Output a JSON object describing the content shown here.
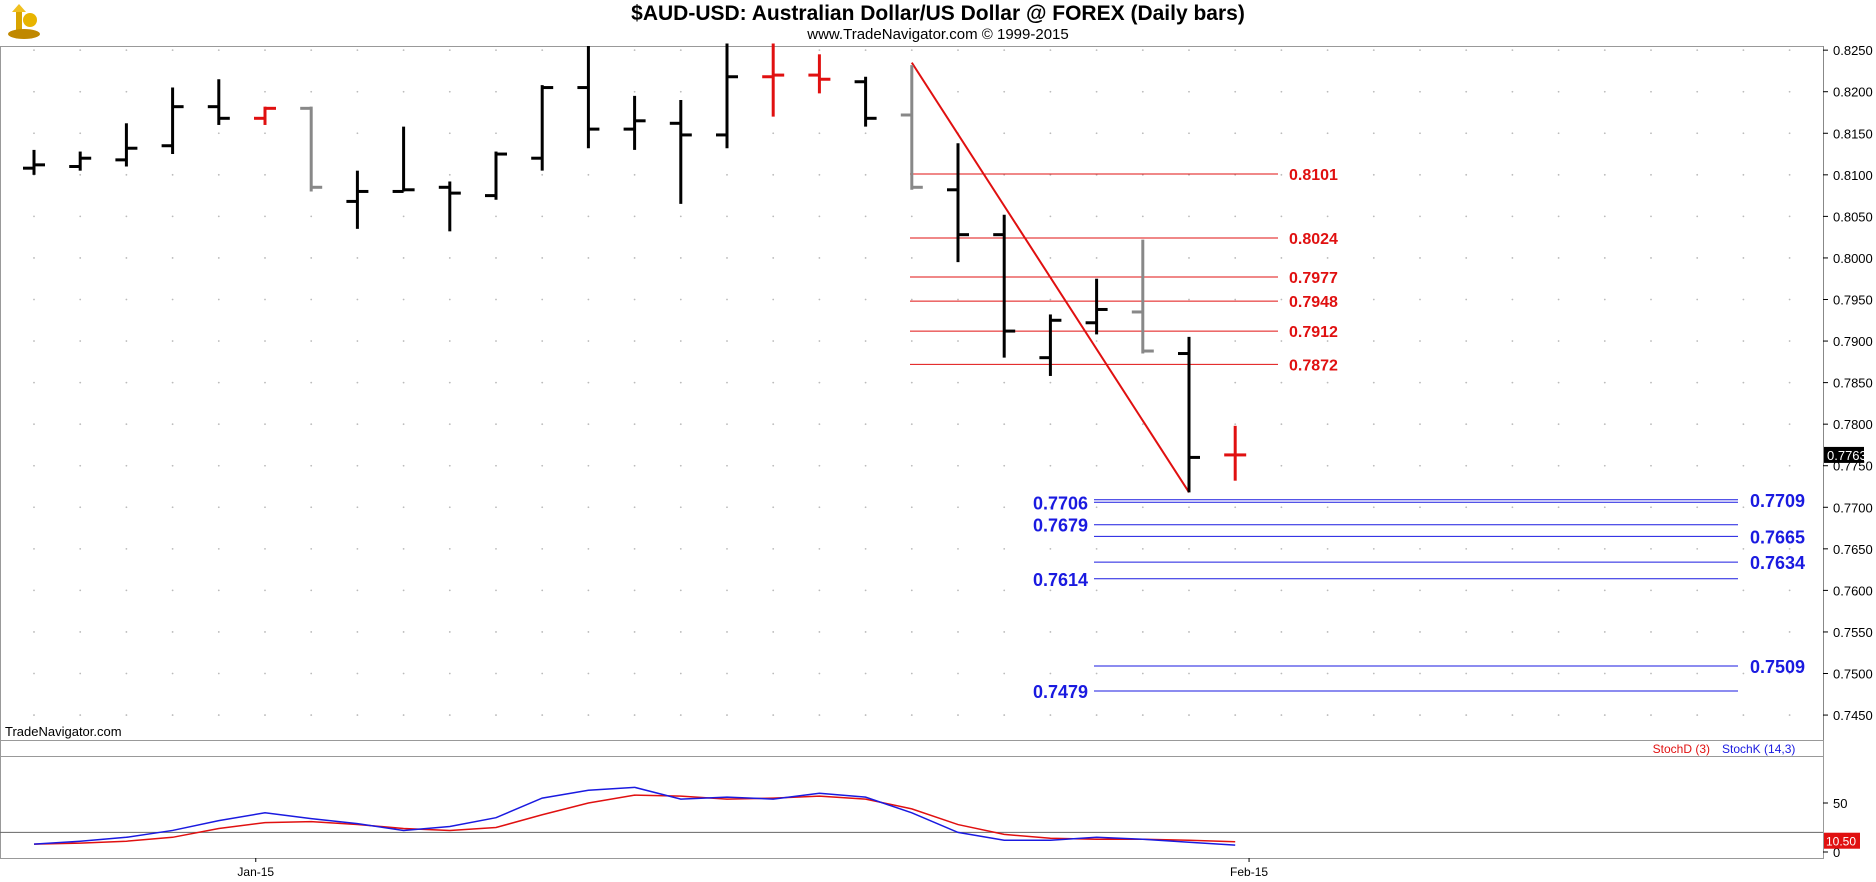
{
  "header": {
    "title": "$AUD-USD:  Australian Dollar/US Dollar @ FOREX  (Daily bars)",
    "subtitle": "www.TradeNavigator.com © 1999-2015",
    "watermark": "TradeNavigator.com"
  },
  "colors": {
    "up_bar": "#000000",
    "down_bar": "#000000",
    "neutral_bar": "#888888",
    "red": "#e01010",
    "blue": "#1a1ae0",
    "grid": "#bbbbbb"
  },
  "chart_data": [
    {
      "type": "ohlc",
      "name": "price",
      "y_ticks": [
        "0.8250",
        "0.8200",
        "0.8150",
        "0.8100",
        "0.8050",
        "0.8000",
        "0.7950",
        "0.7900",
        "0.7850",
        "0.7800",
        "0.7750",
        "0.7700",
        "0.7650",
        "0.7600",
        "0.7550",
        "0.7500",
        "0.7450"
      ],
      "ylim": [
        0.742,
        0.8255
      ],
      "x_ticks": [
        {
          "label": "Jan-15",
          "index": 4.8
        },
        {
          "label": "Feb-15",
          "index": 26.3
        }
      ],
      "last_price_label": "0.7763",
      "bars": [
        {
          "o": 0.8108,
          "h": 0.813,
          "l": 0.81,
          "c": 0.8112,
          "color": "black"
        },
        {
          "o": 0.811,
          "h": 0.8128,
          "l": 0.8105,
          "c": 0.812,
          "color": "black"
        },
        {
          "o": 0.8118,
          "h": 0.8162,
          "l": 0.811,
          "c": 0.8132,
          "color": "black"
        },
        {
          "o": 0.8135,
          "h": 0.8205,
          "l": 0.8125,
          "c": 0.8182,
          "color": "black"
        },
        {
          "o": 0.8182,
          "h": 0.8215,
          "l": 0.816,
          "c": 0.8168,
          "color": "black"
        },
        {
          "o": 0.8168,
          "h": 0.8182,
          "l": 0.816,
          "c": 0.818,
          "color": "red"
        },
        {
          "o": 0.818,
          "h": 0.8182,
          "l": 0.808,
          "c": 0.8085,
          "color": "gray"
        },
        {
          "o": 0.8068,
          "h": 0.8105,
          "l": 0.8035,
          "c": 0.808,
          "color": "black"
        },
        {
          "o": 0.808,
          "h": 0.8158,
          "l": 0.808,
          "c": 0.8082,
          "color": "black"
        },
        {
          "o": 0.8085,
          "h": 0.8092,
          "l": 0.8032,
          "c": 0.8078,
          "color": "black"
        },
        {
          "o": 0.8075,
          "h": 0.8128,
          "l": 0.807,
          "c": 0.8125,
          "color": "black"
        },
        {
          "o": 0.812,
          "h": 0.8208,
          "l": 0.8105,
          "c": 0.8205,
          "color": "black"
        },
        {
          "o": 0.8205,
          "h": 0.8255,
          "l": 0.8132,
          "c": 0.8155,
          "color": "black"
        },
        {
          "o": 0.8155,
          "h": 0.8195,
          "l": 0.813,
          "c": 0.8165,
          "color": "black"
        },
        {
          "o": 0.8162,
          "h": 0.819,
          "l": 0.8065,
          "c": 0.8148,
          "color": "black"
        },
        {
          "o": 0.8148,
          "h": 0.8258,
          "l": 0.8132,
          "c": 0.8218,
          "color": "black"
        },
        {
          "o": 0.8218,
          "h": 0.8258,
          "l": 0.817,
          "c": 0.822,
          "color": "red"
        },
        {
          "o": 0.822,
          "h": 0.8245,
          "l": 0.8198,
          "c": 0.8215,
          "color": "red"
        },
        {
          "o": 0.8212,
          "h": 0.8218,
          "l": 0.8158,
          "c": 0.8168,
          "color": "black"
        },
        {
          "o": 0.8172,
          "h": 0.8232,
          "l": 0.8082,
          "c": 0.8085,
          "color": "gray"
        },
        {
          "o": 0.8082,
          "h": 0.8138,
          "l": 0.7995,
          "c": 0.8028,
          "color": "black"
        },
        {
          "o": 0.8028,
          "h": 0.8052,
          "l": 0.788,
          "c": 0.7912,
          "color": "black"
        },
        {
          "o": 0.788,
          "h": 0.7932,
          "l": 0.7858,
          "c": 0.7925,
          "color": "black"
        },
        {
          "o": 0.7922,
          "h": 0.7975,
          "l": 0.7908,
          "c": 0.7938,
          "color": "black"
        },
        {
          "o": 0.7935,
          "h": 0.8022,
          "l": 0.7885,
          "c": 0.7888,
          "color": "gray"
        },
        {
          "o": 0.7885,
          "h": 0.7905,
          "l": 0.7718,
          "c": 0.776,
          "color": "black"
        },
        {
          "o": 0.7763,
          "h": 0.7798,
          "l": 0.7732,
          "c": 0.7763,
          "color": "red"
        }
      ],
      "trendline": {
        "from": {
          "index": 19,
          "price": 0.8235
        },
        "to": {
          "index": 25,
          "price": 0.7718
        },
        "color": "red"
      },
      "red_levels": [
        {
          "value": 0.8101,
          "label": "0.8101"
        },
        {
          "value": 0.8024,
          "label": "0.8024"
        },
        {
          "value": 0.7977,
          "label": "0.7977"
        },
        {
          "value": 0.7948,
          "label": "0.7948"
        },
        {
          "value": 0.7912,
          "label": "0.7912"
        },
        {
          "value": 0.7872,
          "label": "0.7872"
        }
      ],
      "blue_levels": [
        {
          "value": 0.7706,
          "label": "0.7706",
          "side": "left"
        },
        {
          "value": 0.7709,
          "label": "0.7709",
          "side": "right"
        },
        {
          "value": 0.7679,
          "label": "0.7679",
          "side": "left"
        },
        {
          "value": 0.7665,
          "label": "0.7665",
          "side": "right"
        },
        {
          "value": 0.7634,
          "label": "0.7634",
          "side": "right"
        },
        {
          "value": 0.7614,
          "label": "0.7614",
          "side": "left"
        },
        {
          "value": 0.7509,
          "label": "0.7509",
          "side": "right"
        },
        {
          "value": 0.7479,
          "label": "0.7479",
          "side": "left"
        }
      ]
    },
    {
      "type": "line",
      "name": "stochastic",
      "legend": [
        "StochD (3)",
        "StochK (14,3)"
      ],
      "y_ticks": [
        "50",
        "0"
      ],
      "ylim": [
        0,
        100
      ],
      "reference_line": 20,
      "last_value_label": "10.50",
      "series": [
        {
          "name": "StochD (3)",
          "color": "red",
          "values": [
            8,
            9,
            11,
            15,
            24,
            30,
            31,
            28,
            24,
            22,
            25,
            38,
            50,
            58,
            57,
            54,
            55,
            57,
            54,
            44,
            28,
            18,
            14,
            13,
            13,
            12,
            10.5
          ]
        },
        {
          "name": "StochK (14,3)",
          "color": "blue",
          "values": [
            8,
            11,
            15,
            22,
            32,
            40,
            34,
            29,
            22,
            26,
            35,
            55,
            63,
            66,
            54,
            56,
            54,
            60,
            56,
            40,
            20,
            12,
            12,
            15,
            13,
            10,
            7
          ]
        }
      ]
    }
  ]
}
